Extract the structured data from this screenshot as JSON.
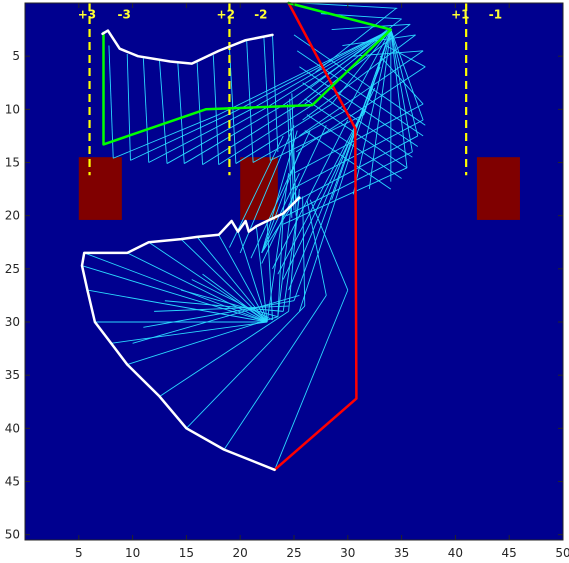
{
  "chart_data": {
    "type": "line",
    "title": "",
    "xlabel": "",
    "ylabel": "",
    "xlim": [
      0,
      50
    ],
    "ylim": [
      0,
      50.5
    ],
    "y_reversed": true,
    "grid": false,
    "xticks": [
      5,
      10,
      15,
      20,
      25,
      30,
      35,
      40,
      45,
      50
    ],
    "yticks": [
      5,
      10,
      15,
      20,
      25,
      30,
      35,
      40,
      45,
      50
    ],
    "colors": {
      "background": "#00008f",
      "obstacle": "#800000",
      "boundary": "#ffff00",
      "envelope": "#ffffff",
      "links": "#2ad8ff",
      "green_arm": "#00ff00",
      "red_arm": "#ff0000"
    },
    "region_labels": [
      {
        "text": "+3",
        "x": 4.9,
        "y": 1.1
      },
      {
        "text": "-3",
        "x": 8.6,
        "y": 1.1
      },
      {
        "text": "+2",
        "x": 17.8,
        "y": 1.1
      },
      {
        "text": "-2",
        "x": 21.3,
        "y": 1.1
      },
      {
        "text": "+1",
        "x": 39.6,
        "y": 1.1
      },
      {
        "text": "-1",
        "x": 43.1,
        "y": 1.1
      }
    ],
    "boundary_lines_x": [
      6.0,
      19.0,
      41.0
    ],
    "boundary_line_y": [
      0,
      16.2
    ],
    "obstacles": [
      {
        "x": 5.0,
        "y": 14.5,
        "w": 4.0,
        "h": 5.9
      },
      {
        "x": 20.0,
        "y": 14.5,
        "w": 3.5,
        "h": 5.9
      },
      {
        "x": 42.0,
        "y": 14.5,
        "w": 4.0,
        "h": 5.9
      }
    ],
    "series": [
      {
        "key": "red_arm",
        "points": [
          [
            24.5,
            0
          ],
          [
            30.7,
            11.8
          ],
          [
            30.8,
            37.2
          ],
          [
            23.2,
            43.9
          ]
        ]
      },
      {
        "key": "green_arm",
        "points": [
          [
            7.3,
            2.8
          ],
          [
            7.3,
            13.3
          ],
          [
            16.8,
            10.0
          ],
          [
            26.7,
            9.6
          ],
          [
            34.0,
            2.5
          ],
          [
            24.5,
            0
          ]
        ]
      },
      {
        "key": "envelope_upper",
        "points": [
          [
            7.2,
            2.9
          ],
          [
            7.7,
            2.6
          ],
          [
            8.8,
            4.3
          ],
          [
            10.5,
            5.0
          ],
          [
            13.5,
            5.5
          ],
          [
            15.5,
            5.7
          ],
          [
            18.0,
            4.5
          ],
          [
            20.5,
            3.5
          ],
          [
            23.0,
            3.0
          ]
        ]
      },
      {
        "key": "envelope_lower",
        "points": [
          [
            25.5,
            18.3
          ],
          [
            24.0,
            19.8
          ],
          [
            22.5,
            20.5
          ],
          [
            21.5,
            21.0
          ],
          [
            20.8,
            21.5
          ],
          [
            20.5,
            20.5
          ],
          [
            19.8,
            21.5
          ],
          [
            19.2,
            20.5
          ],
          [
            18.0,
            21.8
          ],
          [
            16.0,
            22.0
          ],
          [
            14.5,
            22.2
          ],
          [
            11.5,
            22.5
          ],
          [
            9.5,
            23.5
          ],
          [
            5.5,
            23.5
          ],
          [
            5.3,
            24.7
          ],
          [
            5.8,
            27.0
          ],
          [
            6.5,
            30.0
          ],
          [
            8.0,
            32.0
          ],
          [
            9.5,
            34.0
          ],
          [
            12.5,
            37.0
          ],
          [
            15.0,
            40.0
          ],
          [
            18.5,
            42.0
          ],
          [
            23.2,
            43.9
          ]
        ]
      }
    ],
    "link_lines": [
      [
        [
          7.8,
          4.0
        ],
        [
          8.2,
          14.6
        ]
      ],
      [
        [
          9.5,
          4.8
        ],
        [
          9.8,
          14.8
        ]
      ],
      [
        [
          11.0,
          5.2
        ],
        [
          11.5,
          15.0
        ]
      ],
      [
        [
          12.5,
          5.4
        ],
        [
          13.2,
          15.1
        ]
      ],
      [
        [
          14.2,
          5.6
        ],
        [
          14.8,
          15.1
        ]
      ],
      [
        [
          16.0,
          5.6
        ],
        [
          16.5,
          15.2
        ]
      ],
      [
        [
          17.5,
          4.9
        ],
        [
          18.0,
          15.2
        ]
      ],
      [
        [
          19.0,
          4.2
        ],
        [
          19.6,
          15.1
        ]
      ],
      [
        [
          20.6,
          3.5
        ],
        [
          21.2,
          15.0
        ]
      ],
      [
        [
          22.2,
          3.2
        ],
        [
          22.8,
          14.8
        ]
      ],
      [
        [
          23.0,
          3.0
        ],
        [
          23.5,
          14.0
        ]
      ],
      [
        [
          8.2,
          14.6
        ],
        [
          18.0,
          10.5
        ]
      ],
      [
        [
          9.8,
          14.8
        ],
        [
          19.5,
          10.2
        ]
      ],
      [
        [
          11.5,
          15.0
        ],
        [
          21.0,
          10.0
        ]
      ],
      [
        [
          13.2,
          15.1
        ],
        [
          22.5,
          9.8
        ]
      ],
      [
        [
          14.8,
          15.1
        ],
        [
          24.0,
          9.6
        ]
      ],
      [
        [
          16.5,
          15.2
        ],
        [
          25.5,
          9.5
        ]
      ],
      [
        [
          18.0,
          15.2
        ],
        [
          27.0,
          9.4
        ]
      ],
      [
        [
          19.6,
          15.1
        ],
        [
          28.5,
          9.5
        ]
      ],
      [
        [
          21.2,
          15.0
        ],
        [
          30.0,
          10.0
        ]
      ],
      [
        [
          22.8,
          14.8
        ],
        [
          31.5,
          10.5
        ]
      ],
      [
        [
          34.0,
          2.5
        ],
        [
          30.0,
          10.0
        ]
      ],
      [
        [
          34.0,
          2.5
        ],
        [
          31.5,
          10.5
        ]
      ],
      [
        [
          34.0,
          2.5
        ],
        [
          28.5,
          9.5
        ]
      ],
      [
        [
          34.0,
          2.5
        ],
        [
          27.0,
          9.4
        ]
      ],
      [
        [
          34.0,
          2.5
        ],
        [
          25.5,
          9.5
        ]
      ],
      [
        [
          34.0,
          2.5
        ],
        [
          24.0,
          9.6
        ]
      ],
      [
        [
          34.0,
          2.5
        ],
        [
          22.5,
          9.8
        ]
      ],
      [
        [
          34.0,
          2.5
        ],
        [
          21.0,
          10.0
        ]
      ],
      [
        [
          34.0,
          2.5
        ],
        [
          19.5,
          10.2
        ]
      ],
      [
        [
          34.0,
          2.5
        ],
        [
          18.0,
          10.5
        ]
      ],
      [
        [
          24.5,
          0
        ],
        [
          34.0,
          2.5
        ]
      ],
      [
        [
          25.6,
          0
        ],
        [
          34.6,
          0.5
        ]
      ],
      [
        [
          27.5,
          1.0
        ],
        [
          35.0,
          1.5
        ]
      ],
      [
        [
          28.5,
          2.5
        ],
        [
          35.8,
          2.0
        ]
      ],
      [
        [
          29.5,
          4.0
        ],
        [
          36.3,
          3.0
        ]
      ],
      [
        [
          30.5,
          5.0
        ],
        [
          37.0,
          4.5
        ]
      ],
      [
        [
          33.5,
          4.0
        ],
        [
          37.2,
          6.0
        ]
      ],
      [
        [
          33.0,
          5.0
        ],
        [
          37.0,
          9.5
        ]
      ],
      [
        [
          34.0,
          2.5
        ],
        [
          37.0,
          11.0
        ]
      ],
      [
        [
          34.0,
          2.5
        ],
        [
          36.5,
          12.5
        ]
      ],
      [
        [
          34.0,
          2.5
        ],
        [
          36.0,
          14.0
        ]
      ],
      [
        [
          34.0,
          2.5
        ],
        [
          35.5,
          15.5
        ]
      ],
      [
        [
          34.0,
          2.5
        ],
        [
          34.0,
          16.8
        ]
      ],
      [
        [
          34.0,
          2.5
        ],
        [
          32.0,
          17.5
        ]
      ],
      [
        [
          34.0,
          2.5
        ],
        [
          30.5,
          18.0
        ]
      ],
      [
        [
          34.0,
          2.5
        ],
        [
          28.5,
          18.5
        ]
      ],
      [
        [
          34.5,
          0.5
        ],
        [
          27.0,
          6.5
        ]
      ],
      [
        [
          35.0,
          1.5
        ],
        [
          26.5,
          8.0
        ]
      ],
      [
        [
          35.8,
          2.0
        ],
        [
          26.0,
          9.5
        ]
      ],
      [
        [
          36.3,
          3.0
        ],
        [
          25.8,
          11.0
        ]
      ],
      [
        [
          37.0,
          4.5
        ],
        [
          25.5,
          12.5
        ]
      ],
      [
        [
          37.2,
          6.0
        ],
        [
          25.2,
          14.0
        ]
      ],
      [
        [
          37.0,
          9.5
        ],
        [
          25.0,
          16.0
        ]
      ],
      [
        [
          37.0,
          11.0
        ],
        [
          24.8,
          17.5
        ]
      ],
      [
        [
          36.5,
          12.5
        ],
        [
          24.5,
          19.0
        ]
      ],
      [
        [
          36.0,
          14.0
        ],
        [
          24.3,
          20.0
        ]
      ],
      [
        [
          35.5,
          15.5
        ],
        [
          24.0,
          20.8
        ]
      ],
      [
        [
          25.0,
          3.0
        ],
        [
          37.2,
          11.5
        ]
      ],
      [
        [
          25.3,
          4.5
        ],
        [
          37.0,
          12.5
        ]
      ],
      [
        [
          25.5,
          6.0
        ],
        [
          36.5,
          13.5
        ]
      ],
      [
        [
          25.8,
          7.5
        ],
        [
          36.0,
          14.5
        ]
      ],
      [
        [
          26.0,
          9.0
        ],
        [
          35.5,
          15.5
        ]
      ],
      [
        [
          26.2,
          10.5
        ],
        [
          35.0,
          16.5
        ]
      ],
      [
        [
          26.0,
          12.0
        ],
        [
          34.0,
          17.5
        ]
      ],
      [
        [
          34.0,
          2.5
        ],
        [
          25.5,
          29.0
        ]
      ],
      [
        [
          33.5,
          4.0
        ],
        [
          25.0,
          28.0
        ]
      ],
      [
        [
          33.0,
          6.0
        ],
        [
          24.5,
          27.0
        ]
      ],
      [
        [
          32.5,
          8.0
        ],
        [
          24.0,
          26.0
        ]
      ],
      [
        [
          31.5,
          10.0
        ],
        [
          23.5,
          25.5
        ]
      ],
      [
        [
          30.0,
          11.0
        ],
        [
          23.0,
          25.0
        ]
      ],
      [
        [
          28.0,
          11.5
        ],
        [
          22.0,
          24.5
        ]
      ],
      [
        [
          26.5,
          12.0
        ],
        [
          21.0,
          24.0
        ]
      ],
      [
        [
          25.0,
          11.5
        ],
        [
          20.0,
          23.5
        ]
      ],
      [
        [
          24.0,
          12.5
        ],
        [
          19.0,
          23.0
        ]
      ],
      [
        [
          24.5,
          16.0
        ],
        [
          22.5,
          30.0
        ]
      ],
      [
        [
          25.0,
          17.0
        ],
        [
          23.5,
          29.5
        ]
      ],
      [
        [
          25.5,
          17.5
        ],
        [
          24.5,
          29.0
        ]
      ],
      [
        [
          25.8,
          18.2
        ],
        [
          26.0,
          28.5
        ]
      ],
      [
        [
          26.2,
          18.5
        ],
        [
          28.0,
          27.5
        ]
      ],
      [
        [
          26.5,
          18.5
        ],
        [
          30.0,
          27.0
        ]
      ],
      [
        [
          22.5,
          30.0
        ],
        [
          16.5,
          25.5
        ]
      ],
      [
        [
          23.0,
          29.8
        ],
        [
          15.5,
          26.0
        ]
      ],
      [
        [
          23.5,
          29.5
        ],
        [
          14.5,
          27.0
        ]
      ],
      [
        [
          24.0,
          29.0
        ],
        [
          13.0,
          28.0
        ]
      ],
      [
        [
          24.5,
          28.5
        ],
        [
          12.0,
          29.0
        ]
      ],
      [
        [
          25.0,
          28.0
        ],
        [
          11.0,
          30.5
        ]
      ],
      [
        [
          25.5,
          27.5
        ],
        [
          10.0,
          32.0
        ]
      ],
      [
        [
          22.5,
          30.0
        ],
        [
          5.8,
          27.0
        ]
      ],
      [
        [
          22.5,
          30.0
        ],
        [
          6.5,
          30.0
        ]
      ],
      [
        [
          22.5,
          30.0
        ],
        [
          8.0,
          32.0
        ]
      ],
      [
        [
          23.5,
          29.5
        ],
        [
          9.5,
          34.0
        ]
      ],
      [
        [
          24.5,
          29.0
        ],
        [
          12.5,
          37.0
        ]
      ],
      [
        [
          26.0,
          28.5
        ],
        [
          15.0,
          40.0
        ]
      ],
      [
        [
          28.0,
          27.5
        ],
        [
          18.5,
          42.0
        ]
      ],
      [
        [
          30.0,
          27.0
        ],
        [
          23.2,
          43.9
        ]
      ],
      [
        [
          22.5,
          30.0
        ],
        [
          5.5,
          23.5
        ]
      ],
      [
        [
          22.5,
          30.0
        ],
        [
          5.3,
          24.7
        ]
      ],
      [
        [
          22.5,
          30.0
        ],
        [
          9.5,
          23.5
        ]
      ],
      [
        [
          22.5,
          30.0
        ],
        [
          11.5,
          22.5
        ]
      ],
      [
        [
          22.5,
          30.0
        ],
        [
          14.5,
          22.2
        ]
      ],
      [
        [
          22.5,
          30.0
        ],
        [
          16.0,
          22.0
        ]
      ],
      [
        [
          22.5,
          30.0
        ],
        [
          18.0,
          21.8
        ]
      ],
      [
        [
          22.5,
          30.0
        ],
        [
          19.8,
          21.5
        ]
      ],
      [
        [
          22.5,
          30.0
        ],
        [
          21.5,
          21.0
        ]
      ],
      [
        [
          23.0,
          29.8
        ],
        [
          22.5,
          20.5
        ]
      ],
      [
        [
          23.5,
          29.5
        ],
        [
          24.0,
          19.8
        ]
      ],
      [
        [
          24.0,
          29.0
        ],
        [
          25.5,
          18.3
        ]
      ],
      [
        [
          22.0,
          23.5
        ],
        [
          25.5,
          18.0
        ]
      ],
      [
        [
          22.0,
          23.5
        ],
        [
          25.5,
          16.0
        ]
      ],
      [
        [
          22.0,
          23.5
        ],
        [
          25.5,
          14.0
        ]
      ],
      [
        [
          22.0,
          23.5
        ],
        [
          25.3,
          12.0
        ]
      ],
      [
        [
          24.8,
          8.5
        ],
        [
          25.2,
          20.0
        ]
      ],
      [
        [
          24.6,
          9.0
        ],
        [
          25.0,
          19.5
        ]
      ],
      [
        [
          24.4,
          9.5
        ],
        [
          24.8,
          20.2
        ]
      ],
      [
        [
          24.6,
          10.0
        ],
        [
          25.2,
          18.5
        ]
      ]
    ]
  }
}
